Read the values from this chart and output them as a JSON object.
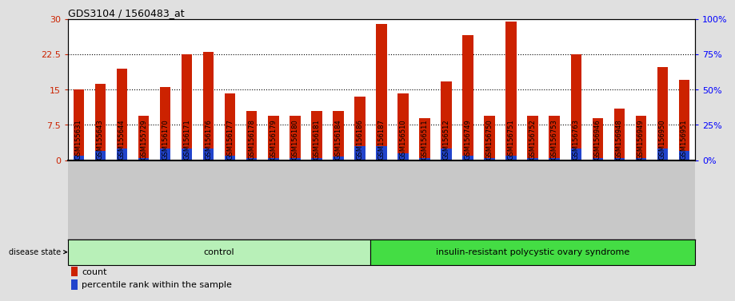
{
  "title": "GDS3104 / 1560483_at",
  "samples": [
    "GSM155631",
    "GSM155643",
    "GSM155644",
    "GSM155729",
    "GSM156170",
    "GSM156171",
    "GSM156176",
    "GSM156177",
    "GSM156178",
    "GSM156179",
    "GSM156180",
    "GSM156181",
    "GSM156184",
    "GSM156186",
    "GSM156187",
    "GSM156510",
    "GSM156511",
    "GSM156512",
    "GSM156749",
    "GSM156750",
    "GSM156751",
    "GSM156752",
    "GSM156753",
    "GSM156763",
    "GSM156946",
    "GSM156948",
    "GSM156949",
    "GSM156950",
    "GSM156951"
  ],
  "red_values": [
    15.0,
    16.2,
    19.5,
    9.5,
    15.5,
    22.5,
    23.0,
    14.2,
    10.5,
    9.5,
    9.5,
    10.5,
    10.5,
    13.5,
    29.0,
    14.2,
    9.0,
    16.8,
    26.5,
    9.5,
    29.5,
    9.5,
    9.5,
    22.5,
    9.0,
    11.0,
    9.5,
    19.8,
    17.0
  ],
  "blue_values": [
    1.0,
    2.0,
    2.5,
    0.5,
    2.5,
    2.5,
    2.5,
    1.0,
    0.5,
    0.5,
    0.5,
    0.5,
    0.8,
    3.0,
    3.0,
    1.5,
    0.5,
    2.5,
    1.0,
    0.5,
    1.0,
    0.5,
    0.5,
    2.5,
    0.5,
    0.5,
    0.5,
    2.5,
    2.0
  ],
  "control_count": 14,
  "ylim_left": [
    0,
    30
  ],
  "ylim_right": [
    0,
    100
  ],
  "yticks_left": [
    0,
    7.5,
    15,
    22.5,
    30
  ],
  "yticks_right": [
    0,
    25,
    50,
    75,
    100
  ],
  "ytick_labels_left": [
    "0",
    "7.5",
    "15",
    "22.5",
    "30"
  ],
  "ytick_labels_right": [
    "0%",
    "25%",
    "50%",
    "75%",
    "100%"
  ],
  "bar_color_red": "#cc2200",
  "bar_color_blue": "#2244cc",
  "fig_bg_color": "#e0e0e0",
  "plot_bg_color": "#ffffff",
  "xtick_bg_color": "#c8c8c8",
  "control_color_light": "#b8f0b8",
  "control_color": "#b8f0b8",
  "disease_color": "#44dd44",
  "control_label": "control",
  "disease_label": "insulin-resistant polycystic ovary syndrome",
  "legend_count": "count",
  "legend_percentile": "percentile rank within the sample",
  "bar_width": 0.5,
  "dotted_lines": [
    7.5,
    15.0,
    22.5
  ]
}
